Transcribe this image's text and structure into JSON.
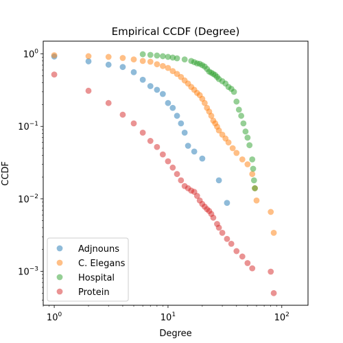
{
  "chart_data": {
    "type": "scatter",
    "title": "Empirical CCDF (Degree)",
    "xlabel": "Degree",
    "ylabel": "CCDF",
    "xscale": "log",
    "yscale": "log",
    "xlim": [
      0.8,
      170
    ],
    "ylim": [
      0.00034,
      1.5
    ],
    "x_ticks": [
      {
        "value": 1,
        "base": "10",
        "exp": "0"
      },
      {
        "value": 10,
        "base": "10",
        "exp": "1"
      },
      {
        "value": 100,
        "base": "10",
        "exp": "2"
      }
    ],
    "y_ticks": [
      {
        "value": 0.001,
        "base": "10",
        "exp": "−3"
      },
      {
        "value": 0.01,
        "base": "10",
        "exp": "−2"
      },
      {
        "value": 0.1,
        "base": "10",
        "exp": "−1"
      },
      {
        "value": 1,
        "base": "10",
        "exp": "0"
      }
    ],
    "grid": false,
    "legend_position": "lower-left",
    "series": [
      {
        "name": "Adjnouns",
        "color": "#1f77b4",
        "points": [
          [
            1,
            0.92
          ],
          [
            2,
            0.79
          ],
          [
            3,
            0.71
          ],
          [
            4,
            0.66
          ],
          [
            5,
            0.56
          ],
          [
            6,
            0.44
          ],
          [
            7,
            0.36
          ],
          [
            8,
            0.32
          ],
          [
            9,
            0.28
          ],
          [
            10,
            0.21
          ],
          [
            11,
            0.18
          ],
          [
            12,
            0.14
          ],
          [
            13,
            0.11
          ],
          [
            14,
            0.082
          ],
          [
            15,
            0.054
          ],
          [
            17,
            0.045
          ],
          [
            20,
            0.036
          ],
          [
            28,
            0.018
          ],
          [
            33,
            0.0088
          ]
        ]
      },
      {
        "name": "C. Elegans",
        "color": "#ff7f0e",
        "points": [
          [
            1,
            0.96
          ],
          [
            2,
            0.93
          ],
          [
            3,
            0.91
          ],
          [
            4,
            0.88
          ],
          [
            5,
            0.84
          ],
          [
            6,
            0.8
          ],
          [
            7,
            0.78
          ],
          [
            8,
            0.72
          ],
          [
            9,
            0.68
          ],
          [
            10,
            0.64
          ],
          [
            11,
            0.58
          ],
          [
            12,
            0.53
          ],
          [
            13,
            0.48
          ],
          [
            14,
            0.43
          ],
          [
            15,
            0.39
          ],
          [
            16,
            0.35
          ],
          [
            17,
            0.32
          ],
          [
            18,
            0.29
          ],
          [
            19,
            0.27
          ],
          [
            20,
            0.24
          ],
          [
            21,
            0.21
          ],
          [
            22,
            0.18
          ],
          [
            23,
            0.16
          ],
          [
            24,
            0.14
          ],
          [
            25,
            0.12
          ],
          [
            26,
            0.11
          ],
          [
            27,
            0.099
          ],
          [
            28,
            0.088
          ],
          [
            30,
            0.077
          ],
          [
            32,
            0.068
          ],
          [
            34,
            0.06
          ],
          [
            37,
            0.05
          ],
          [
            40,
            0.043
          ],
          [
            45,
            0.035
          ],
          [
            50,
            0.03
          ],
          [
            55,
            0.022
          ],
          [
            58,
            0.014
          ],
          [
            60,
            0.0095
          ],
          [
            80,
            0.0066
          ],
          [
            85,
            0.0034
          ]
        ]
      },
      {
        "name": "Hospital",
        "color": "#2ca02c",
        "points": [
          [
            6,
            0.99
          ],
          [
            7,
            0.97
          ],
          [
            8,
            0.95
          ],
          [
            9,
            0.93
          ],
          [
            10,
            0.91
          ],
          [
            11,
            0.89
          ],
          [
            12,
            0.87
          ],
          [
            14,
            0.84
          ],
          [
            16,
            0.8
          ],
          [
            17,
            0.77
          ],
          [
            18,
            0.74
          ],
          [
            19,
            0.73
          ],
          [
            20,
            0.7
          ],
          [
            21,
            0.67
          ],
          [
            22,
            0.62
          ],
          [
            23,
            0.57
          ],
          [
            24,
            0.55
          ],
          [
            25,
            0.53
          ],
          [
            26,
            0.51
          ],
          [
            27,
            0.48
          ],
          [
            28,
            0.45
          ],
          [
            30,
            0.42
          ],
          [
            32,
            0.39
          ],
          [
            34,
            0.35
          ],
          [
            36,
            0.33
          ],
          [
            38,
            0.3
          ],
          [
            40,
            0.22
          ],
          [
            42,
            0.17
          ],
          [
            44,
            0.14
          ],
          [
            46,
            0.11
          ],
          [
            48,
            0.085
          ],
          [
            50,
            0.07
          ],
          [
            52,
            0.055
          ],
          [
            55,
            0.035
          ],
          [
            56,
            0.026
          ],
          [
            57,
            0.018
          ],
          [
            58,
            0.014
          ]
        ]
      },
      {
        "name": "Protein",
        "color": "#d62728",
        "points": [
          [
            1,
            0.52
          ],
          [
            2,
            0.31
          ],
          [
            3,
            0.21
          ],
          [
            4,
            0.145
          ],
          [
            5,
            0.11
          ],
          [
            6,
            0.082
          ],
          [
            7,
            0.063
          ],
          [
            8,
            0.052
          ],
          [
            9,
            0.041
          ],
          [
            10,
            0.033
          ],
          [
            11,
            0.027
          ],
          [
            12,
            0.022
          ],
          [
            13,
            0.018
          ],
          [
            14,
            0.015
          ],
          [
            15,
            0.014
          ],
          [
            16,
            0.013
          ],
          [
            17,
            0.0125
          ],
          [
            18,
            0.011
          ],
          [
            19,
            0.0095
          ],
          [
            20,
            0.0085
          ],
          [
            21,
            0.0078
          ],
          [
            22,
            0.0072
          ],
          [
            23,
            0.0068
          ],
          [
            24,
            0.0062
          ],
          [
            25,
            0.0055
          ],
          [
            27,
            0.0045
          ],
          [
            28,
            0.004
          ],
          [
            30,
            0.0034
          ],
          [
            33,
            0.0028
          ],
          [
            36,
            0.0024
          ],
          [
            40,
            0.0019
          ],
          [
            45,
            0.0016
          ],
          [
            50,
            0.0013
          ],
          [
            55,
            0.0011
          ],
          [
            80,
            0.00099
          ],
          [
            85,
            0.0005
          ]
        ]
      }
    ]
  }
}
